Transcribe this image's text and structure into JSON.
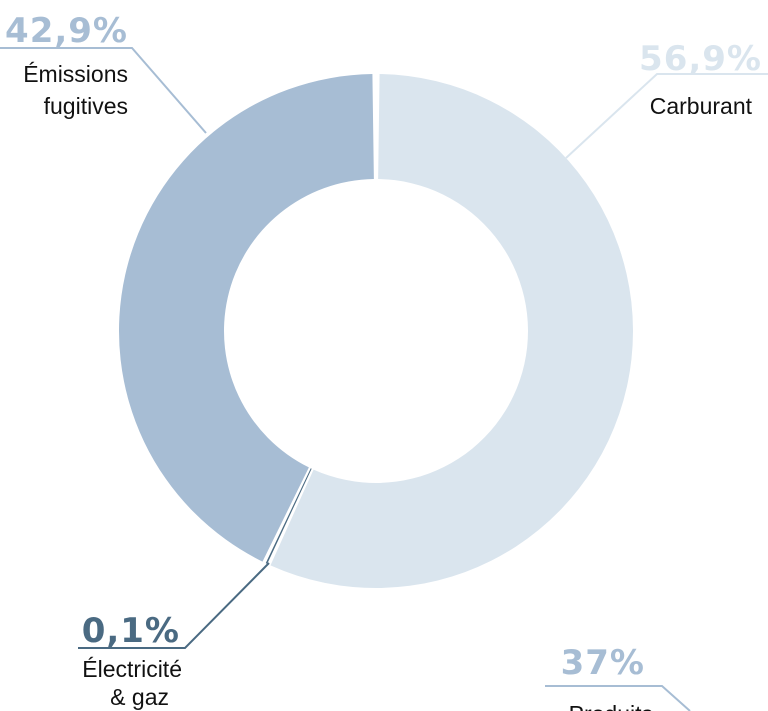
{
  "chart_data": {
    "type": "pie",
    "variant": "donut",
    "slices": [
      {
        "label": "Carburant",
        "value": 56.9,
        "value_label": "56,9%",
        "color": "#dae5ee"
      },
      {
        "label": "Électricité & gaz",
        "value": 0.1,
        "value_label": "0,1%",
        "color": "#4a6a82"
      },
      {
        "label": "Émissions fugitives",
        "value": 42.9,
        "value_label": "42,9%",
        "color": "#a7bdd4"
      }
    ],
    "extra_callout": {
      "label": "Produits",
      "value": 37,
      "value_label": "37%",
      "color": "#a7bdd4"
    }
  },
  "labels": {
    "carburant": {
      "pct": "56,9%",
      "line1": "Carburant"
    },
    "emissions": {
      "pct": "42,9%",
      "line1": "Émissions",
      "line2": "fugitives"
    },
    "electricite": {
      "pct": "0,1%",
      "line1": "Électricité",
      "line2": "& gaz"
    },
    "produits": {
      "pct": "37%",
      "line1": "Produits"
    }
  }
}
